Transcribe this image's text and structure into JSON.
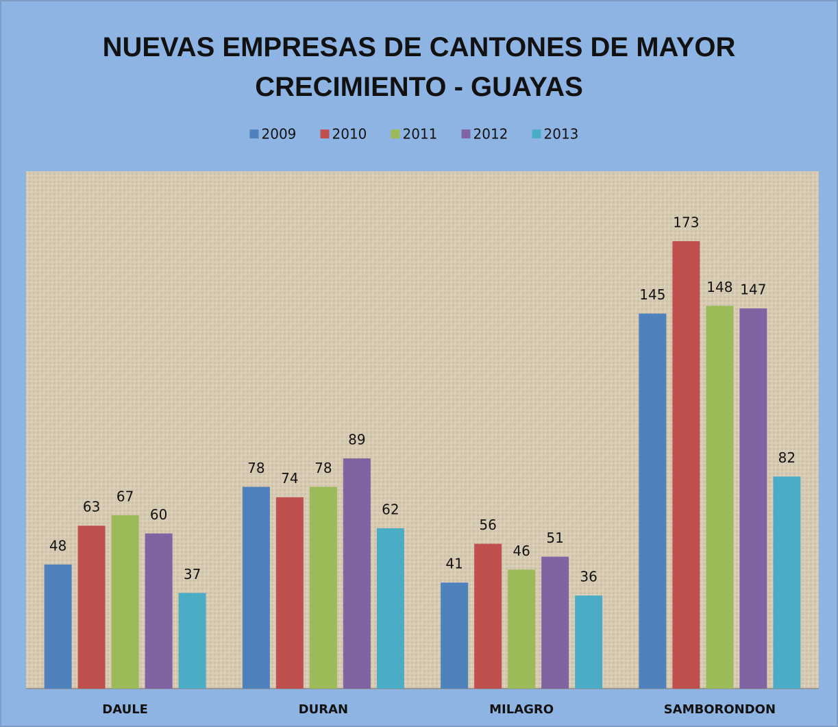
{
  "chart_data": {
    "type": "bar",
    "title": "NUEVAS EMPRESAS DE CANTONES DE MAYOR CRECIMIENTO - GUAYAS",
    "categories": [
      "DAULE",
      "DURAN",
      "MILAGRO",
      "SAMBORONDON"
    ],
    "series": [
      {
        "name": "2009",
        "color": "#4f81bd",
        "values": [
          48,
          78,
          41,
          145
        ]
      },
      {
        "name": "2010",
        "color": "#c0504d",
        "values": [
          63,
          74,
          56,
          173
        ]
      },
      {
        "name": "2011",
        "color": "#9bbb59",
        "values": [
          67,
          78,
          46,
          148
        ]
      },
      {
        "name": "2012",
        "color": "#8064a2",
        "values": [
          60,
          89,
          51,
          147
        ]
      },
      {
        "name": "2013",
        "color": "#4bacc6",
        "values": [
          37,
          62,
          36,
          82
        ]
      }
    ],
    "ylim": [
      0,
      200
    ],
    "legend": "top"
  }
}
